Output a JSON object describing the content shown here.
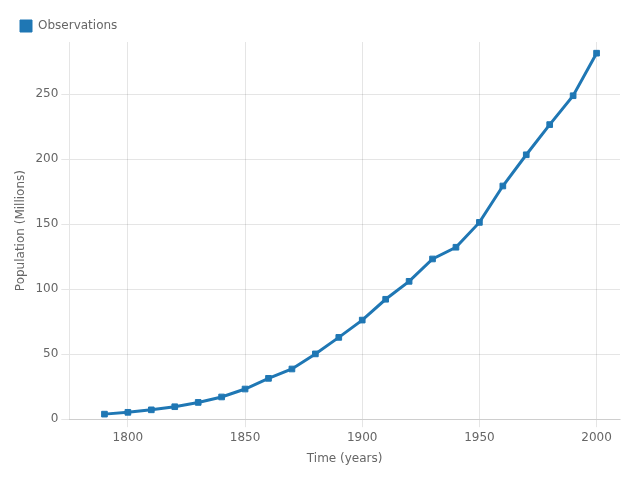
{
  "chart_data": {
    "type": "line",
    "xlabel": "Time (years)",
    "ylabel": "Population (Millions)",
    "x": [
      1790,
      1800,
      1810,
      1820,
      1830,
      1840,
      1850,
      1860,
      1870,
      1880,
      1890,
      1900,
      1910,
      1920,
      1930,
      1940,
      1950,
      1960,
      1970,
      1980,
      1990,
      2000
    ],
    "series": [
      {
        "name": "Observations",
        "color": "#1f77b4",
        "marker": "square",
        "line_style": "solid",
        "values": [
          3.9,
          5.3,
          7.2,
          9.6,
          12.9,
          17.1,
          23.2,
          31.4,
          38.6,
          50.2,
          62.9,
          76.2,
          92.2,
          106.0,
          123.2,
          132.2,
          151.3,
          179.3,
          203.3,
          226.5,
          248.7,
          281.4
        ]
      }
    ],
    "xlim": [
      1775,
      2010
    ],
    "ylim": [
      0,
      290
    ],
    "xticks": [
      1800,
      1850,
      1900,
      1950,
      2000
    ],
    "yticks": [
      0,
      50,
      100,
      150,
      200,
      250
    ],
    "grid": true,
    "legend": "upper left"
  }
}
